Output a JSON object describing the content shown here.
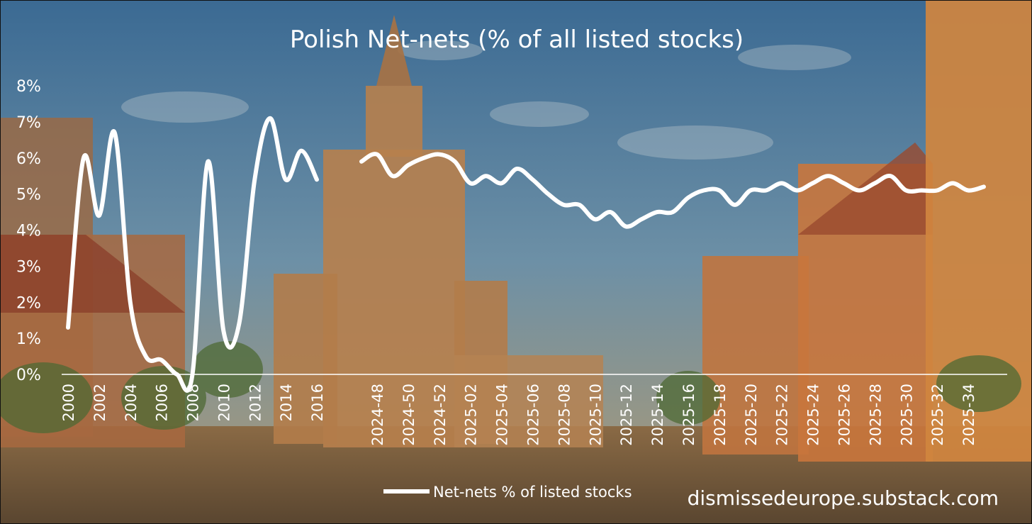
{
  "chart_data": {
    "type": "line",
    "title": "Polish Net-nets (% of all listed stocks)",
    "ylim": [
      0,
      8
    ],
    "y_ticks": [
      "0%",
      "1%",
      "2%",
      "3%",
      "4%",
      "5%",
      "6%",
      "7%",
      "8%"
    ],
    "x_tick_labels": [
      "2000",
      "2002",
      "2004",
      "2006",
      "2008",
      "2010",
      "2012",
      "2014",
      "2016",
      "2024-48",
      "2024-50",
      "2024-52",
      "2025-02",
      "2025-04",
      "2025-06",
      "2025-08",
      "2025-10",
      "2025-12",
      "2025-14",
      "2025-16",
      "2025-18",
      "2025-20",
      "2025-22",
      "2025-24",
      "2025-26",
      "2025-28",
      "2025-30",
      "2025-32",
      "2025-34"
    ],
    "legend": {
      "position": "bottom",
      "label": "Net-nets % of listed stocks"
    },
    "series": [
      {
        "name": "Net-nets % of listed stocks",
        "segments": [
          {
            "x": [
              "2000",
              "2001",
              "2002",
              "2003",
              "2004",
              "2005",
              "2006",
              "2007",
              "2008",
              "2009",
              "2010",
              "2011",
              "2012",
              "2013",
              "2014",
              "2015",
              "2016"
            ],
            "values": [
              1.3,
              6.0,
              4.4,
              6.7,
              2.0,
              0.5,
              0.4,
              0.0,
              0.0,
              5.9,
              1.2,
              1.4,
              5.4,
              7.1,
              5.4,
              6.2,
              5.4
            ]
          },
          {
            "x": [
              "2024-47",
              "2024-48",
              "2024-49",
              "2024-50",
              "2024-51",
              "2024-52",
              "2025-01",
              "2025-02",
              "2025-03",
              "2025-04",
              "2025-05",
              "2025-06",
              "2025-07",
              "2025-08",
              "2025-09",
              "2025-10",
              "2025-11",
              "2025-12",
              "2025-13",
              "2025-14",
              "2025-15",
              "2025-16",
              "2025-17",
              "2025-18",
              "2025-19",
              "2025-20",
              "2025-21",
              "2025-22",
              "2025-23",
              "2025-24",
              "2025-25",
              "2025-26",
              "2025-27",
              "2025-28",
              "2025-29",
              "2025-30",
              "2025-31",
              "2025-32",
              "2025-33",
              "2025-34",
              "2025-35"
            ],
            "values": [
              5.9,
              6.1,
              5.5,
              5.8,
              6.0,
              6.1,
              5.9,
              5.3,
              5.5,
              5.3,
              5.7,
              5.4,
              5.0,
              4.7,
              4.7,
              4.3,
              4.5,
              4.1,
              4.3,
              4.5,
              4.5,
              4.9,
              5.1,
              5.1,
              4.7,
              5.1,
              5.1,
              5.3,
              5.1,
              5.3,
              5.5,
              5.3,
              5.1,
              5.3,
              5.5,
              5.1,
              5.1,
              5.1,
              5.3,
              5.1,
              5.2
            ]
          }
        ]
      }
    ],
    "grid": false
  },
  "watermark": "dismissedeurope.substack.com",
  "colors": {
    "line": "#ffffff",
    "text": "#ffffff"
  }
}
